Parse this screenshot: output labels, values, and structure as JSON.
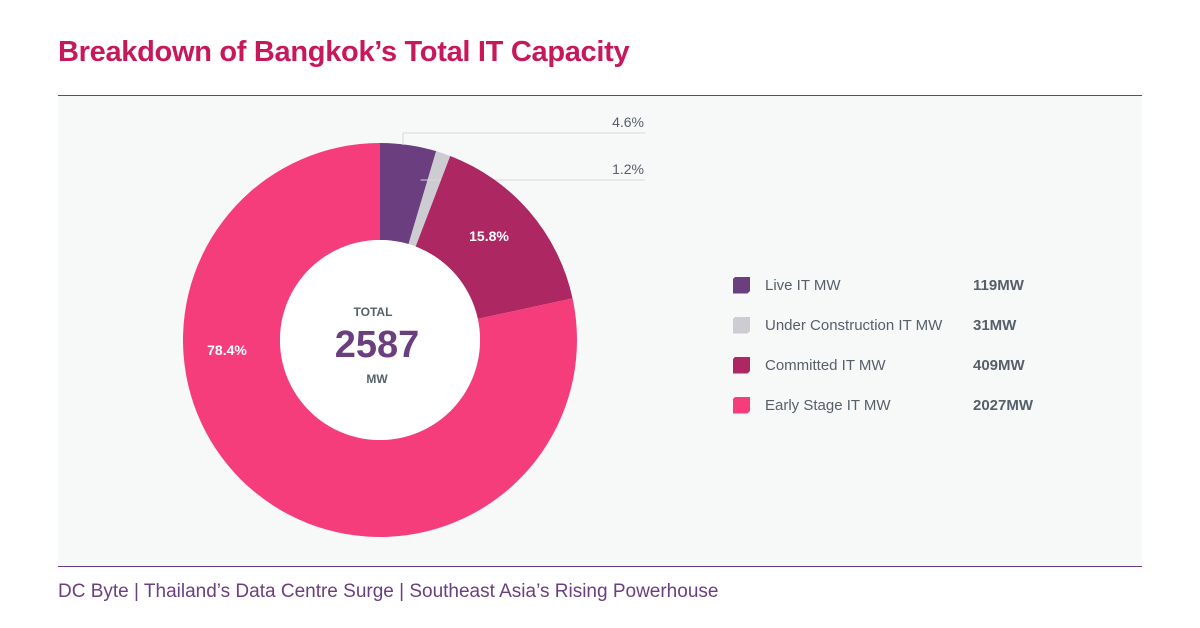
{
  "title": "Breakdown of Bangkok’s Total IT Capacity",
  "footer": "DC Byte  |  Thailand’s Data Centre Surge  |  Southeast Asia’s Rising Powerhouse",
  "chart_data": {
    "type": "pie",
    "variant": "donut",
    "center": {
      "label_top": "TOTAL",
      "value": "2587",
      "label_bottom": "MW"
    },
    "slices": [
      {
        "name": "Live IT MW",
        "value": 119,
        "value_label": "119MW",
        "percent": 4.6,
        "percent_label": "4.6%",
        "color": "#6b3f7f",
        "label_position": "outside"
      },
      {
        "name": "Under Construction IT MW",
        "value": 31,
        "value_label": "31MW",
        "percent": 1.2,
        "percent_label": "1.2%",
        "color": "#cdccd3",
        "label_position": "outside"
      },
      {
        "name": "Committed IT MW",
        "value": 409,
        "value_label": "409MW",
        "percent": 15.8,
        "percent_label": "15.8%",
        "color": "#ad2762",
        "label_position": "inside"
      },
      {
        "name": "Early Stage IT MW",
        "value": 2027,
        "value_label": "2027MW",
        "percent": 78.4,
        "percent_label": "78.4%",
        "color": "#f53d7b",
        "label_position": "inside"
      }
    ],
    "legend_placement": "right"
  }
}
